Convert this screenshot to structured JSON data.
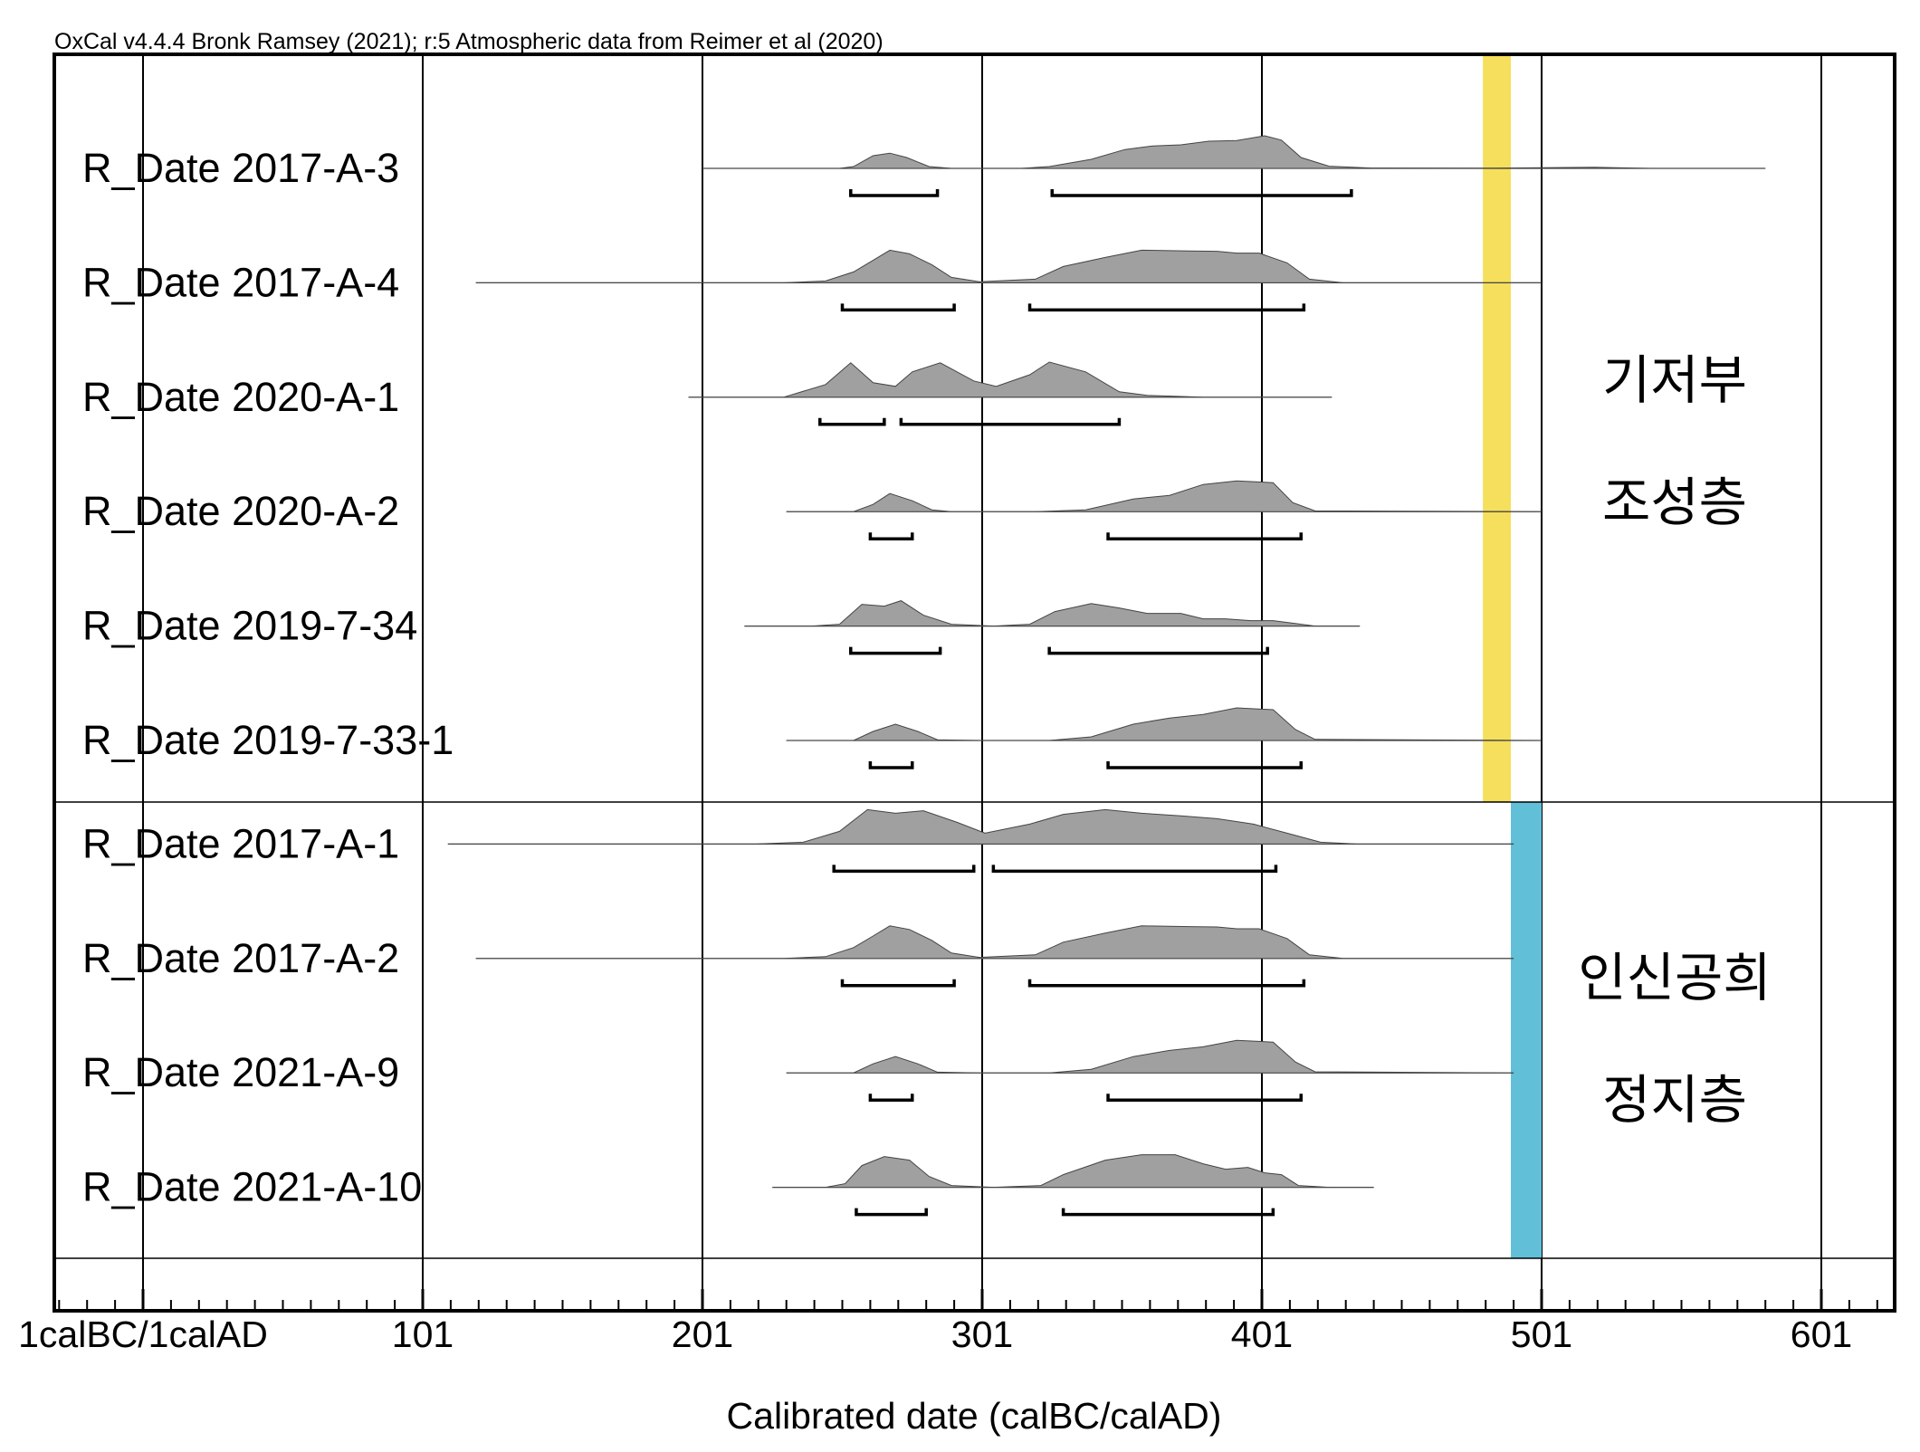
{
  "credit": "OxCal v4.4.4 Bronk Ramsey (2021); r:5 Atmospheric data from Reimer et al (2020)",
  "chart_data": {
    "type": "area",
    "xlabel": "Calibrated date (calBC/calAD)",
    "xlim": [
      -30,
      630
    ],
    "major_ticks": [
      1,
      101,
      201,
      301,
      401,
      501,
      601
    ],
    "tick_labels": [
      "1calBC/1calAD",
      "101",
      "201",
      "301",
      "401",
      "501",
      "601"
    ],
    "minor_tick_step": 10,
    "grid": true,
    "colors": {
      "distribution": "#a0a0a0",
      "range_bar": "#000000",
      "group1": "#f6df5c",
      "group2": "#61bfd8"
    },
    "series": [
      {
        "name": "R_Date 2017-A-3",
        "extent": [
          201,
          581
        ],
        "profile": [
          [
            201,
            0
          ],
          [
            250,
            0
          ],
          [
            255,
            0.05
          ],
          [
            262,
            0.35
          ],
          [
            268,
            0.42
          ],
          [
            274,
            0.3
          ],
          [
            282,
            0.05
          ],
          [
            290,
            0
          ],
          [
            300,
            0
          ],
          [
            315,
            0
          ],
          [
            325,
            0.05
          ],
          [
            340,
            0.25
          ],
          [
            352,
            0.52
          ],
          [
            362,
            0.62
          ],
          [
            372,
            0.65
          ],
          [
            382,
            0.75
          ],
          [
            392,
            0.77
          ],
          [
            402,
            0.9
          ],
          [
            408,
            0.78
          ],
          [
            415,
            0.3
          ],
          [
            425,
            0.06
          ],
          [
            440,
            0.01
          ],
          [
            480,
            0.005
          ],
          [
            520,
            0.03
          ],
          [
            540,
            0
          ],
          [
            581,
            0
          ]
        ],
        "ranges": [
          [
            254,
            285
          ],
          [
            326,
            433
          ]
        ]
      },
      {
        "name": "R_Date 2017-A-4",
        "extent": [
          120,
          501
        ],
        "profile": [
          [
            120,
            0
          ],
          [
            230,
            0
          ],
          [
            245,
            0.05
          ],
          [
            255,
            0.3
          ],
          [
            262,
            0.62
          ],
          [
            268,
            0.9
          ],
          [
            275,
            0.8
          ],
          [
            283,
            0.5
          ],
          [
            290,
            0.15
          ],
          [
            300,
            0.03
          ],
          [
            320,
            0.1
          ],
          [
            330,
            0.45
          ],
          [
            345,
            0.7
          ],
          [
            358,
            0.9
          ],
          [
            375,
            0.88
          ],
          [
            385,
            0.87
          ],
          [
            392,
            0.82
          ],
          [
            400,
            0.82
          ],
          [
            410,
            0.55
          ],
          [
            418,
            0.1
          ],
          [
            430,
            0
          ],
          [
            501,
            0
          ]
        ],
        "ranges": [
          [
            251,
            291
          ],
          [
            318,
            416
          ]
        ]
      },
      {
        "name": "R_Date 2020-A-1",
        "extent": [
          196,
          426
        ],
        "profile": [
          [
            196,
            0
          ],
          [
            230,
            0
          ],
          [
            245,
            0.35
          ],
          [
            254,
            0.95
          ],
          [
            262,
            0.4
          ],
          [
            270,
            0.3
          ],
          [
            276,
            0.7
          ],
          [
            286,
            0.95
          ],
          [
            298,
            0.45
          ],
          [
            306,
            0.3
          ],
          [
            318,
            0.62
          ],
          [
            325,
            0.97
          ],
          [
            338,
            0.7
          ],
          [
            350,
            0.15
          ],
          [
            360,
            0.05
          ],
          [
            380,
            0
          ],
          [
            426,
            0
          ]
        ],
        "ranges": [
          [
            243,
            266
          ],
          [
            272,
            350
          ]
        ]
      },
      {
        "name": "R_Date 2020-A-2",
        "extent": [
          231,
          501
        ],
        "profile": [
          [
            231,
            0
          ],
          [
            255,
            0
          ],
          [
            262,
            0.2
          ],
          [
            268,
            0.5
          ],
          [
            276,
            0.3
          ],
          [
            283,
            0.05
          ],
          [
            290,
            0
          ],
          [
            320,
            0
          ],
          [
            338,
            0.05
          ],
          [
            355,
            0.35
          ],
          [
            368,
            0.45
          ],
          [
            380,
            0.75
          ],
          [
            392,
            0.85
          ],
          [
            405,
            0.8
          ],
          [
            412,
            0.25
          ],
          [
            420,
            0.02
          ],
          [
            501,
            0
          ]
        ],
        "ranges": [
          [
            261,
            276
          ],
          [
            346,
            415
          ]
        ]
      },
      {
        "name": "R_Date 2019-7-34",
        "extent": [
          216,
          436
        ],
        "profile": [
          [
            216,
            0
          ],
          [
            240,
            0
          ],
          [
            250,
            0.05
          ],
          [
            258,
            0.6
          ],
          [
            266,
            0.55
          ],
          [
            272,
            0.7
          ],
          [
            280,
            0.3
          ],
          [
            290,
            0.05
          ],
          [
            305,
            0
          ],
          [
            318,
            0.05
          ],
          [
            327,
            0.4
          ],
          [
            340,
            0.62
          ],
          [
            350,
            0.5
          ],
          [
            360,
            0.35
          ],
          [
            372,
            0.35
          ],
          [
            380,
            0.2
          ],
          [
            388,
            0.2
          ],
          [
            397,
            0.15
          ],
          [
            405,
            0.15
          ],
          [
            412,
            0.08
          ],
          [
            420,
            0
          ],
          [
            436,
            0
          ]
        ],
        "ranges": [
          [
            254,
            286
          ],
          [
            325,
            403
          ]
        ]
      },
      {
        "name": "R_Date 2019-7-33-1",
        "extent": [
          231,
          501
        ],
        "profile": [
          [
            231,
            0
          ],
          [
            255,
            0
          ],
          [
            262,
            0.25
          ],
          [
            270,
            0.45
          ],
          [
            278,
            0.25
          ],
          [
            285,
            0.02
          ],
          [
            300,
            0
          ],
          [
            325,
            0
          ],
          [
            340,
            0.1
          ],
          [
            355,
            0.45
          ],
          [
            368,
            0.62
          ],
          [
            380,
            0.72
          ],
          [
            392,
            0.9
          ],
          [
            405,
            0.85
          ],
          [
            413,
            0.3
          ],
          [
            420,
            0.03
          ],
          [
            501,
            0
          ]
        ],
        "ranges": [
          [
            261,
            276
          ],
          [
            346,
            415
          ]
        ]
      },
      {
        "name": "R_Date 2017-A-1",
        "extent": [
          110,
          491
        ],
        "profile": [
          [
            110,
            0
          ],
          [
            220,
            0
          ],
          [
            237,
            0.05
          ],
          [
            250,
            0.35
          ],
          [
            260,
            0.95
          ],
          [
            270,
            0.85
          ],
          [
            280,
            0.92
          ],
          [
            292,
            0.6
          ],
          [
            302,
            0.3
          ],
          [
            318,
            0.55
          ],
          [
            330,
            0.82
          ],
          [
            345,
            0.95
          ],
          [
            358,
            0.85
          ],
          [
            372,
            0.78
          ],
          [
            385,
            0.7
          ],
          [
            398,
            0.55
          ],
          [
            410,
            0.3
          ],
          [
            422,
            0.05
          ],
          [
            435,
            0
          ],
          [
            491,
            0
          ]
        ],
        "ranges": [
          [
            248,
            298
          ],
          [
            305,
            406
          ]
        ]
      },
      {
        "name": "R_Date 2017-A-2",
        "extent": [
          120,
          491
        ],
        "profile": [
          [
            120,
            0
          ],
          [
            230,
            0
          ],
          [
            245,
            0.05
          ],
          [
            255,
            0.3
          ],
          [
            262,
            0.62
          ],
          [
            268,
            0.9
          ],
          [
            275,
            0.8
          ],
          [
            283,
            0.5
          ],
          [
            290,
            0.15
          ],
          [
            300,
            0.03
          ],
          [
            320,
            0.1
          ],
          [
            330,
            0.45
          ],
          [
            345,
            0.7
          ],
          [
            358,
            0.9
          ],
          [
            375,
            0.88
          ],
          [
            385,
            0.87
          ],
          [
            392,
            0.82
          ],
          [
            400,
            0.82
          ],
          [
            410,
            0.55
          ],
          [
            418,
            0.1
          ],
          [
            430,
            0
          ],
          [
            491,
            0
          ]
        ],
        "ranges": [
          [
            251,
            291
          ],
          [
            318,
            416
          ]
        ]
      },
      {
        "name": "R_Date 2021-A-9",
        "extent": [
          231,
          491
        ],
        "profile": [
          [
            231,
            0
          ],
          [
            255,
            0
          ],
          [
            262,
            0.25
          ],
          [
            270,
            0.45
          ],
          [
            278,
            0.25
          ],
          [
            285,
            0.02
          ],
          [
            300,
            0
          ],
          [
            325,
            0
          ],
          [
            340,
            0.1
          ],
          [
            355,
            0.45
          ],
          [
            368,
            0.62
          ],
          [
            380,
            0.72
          ],
          [
            392,
            0.9
          ],
          [
            405,
            0.85
          ],
          [
            413,
            0.3
          ],
          [
            420,
            0.03
          ],
          [
            491,
            0
          ]
        ],
        "ranges": [
          [
            261,
            276
          ],
          [
            346,
            415
          ]
        ]
      },
      {
        "name": "R_Date 2021-A-10",
        "extent": [
          226,
          441
        ],
        "profile": [
          [
            226,
            0
          ],
          [
            245,
            0
          ],
          [
            252,
            0.1
          ],
          [
            258,
            0.6
          ],
          [
            266,
            0.85
          ],
          [
            275,
            0.75
          ],
          [
            282,
            0.3
          ],
          [
            290,
            0.05
          ],
          [
            305,
            0
          ],
          [
            322,
            0.05
          ],
          [
            330,
            0.35
          ],
          [
            345,
            0.75
          ],
          [
            358,
            0.9
          ],
          [
            370,
            0.9
          ],
          [
            380,
            0.65
          ],
          [
            388,
            0.5
          ],
          [
            396,
            0.55
          ],
          [
            402,
            0.4
          ],
          [
            408,
            0.35
          ],
          [
            414,
            0.05
          ],
          [
            425,
            0
          ],
          [
            441,
            0
          ]
        ],
        "ranges": [
          [
            256,
            281
          ],
          [
            330,
            405
          ]
        ]
      }
    ],
    "groups": [
      {
        "label_lines": [
          "기저부",
          "조성층"
        ],
        "first_series": 0,
        "last_series": 5,
        "bar_range": [
          480,
          490
        ],
        "color": "#f6df5c"
      },
      {
        "label_lines": [
          "인신공희",
          "정지층"
        ],
        "first_series": 6,
        "last_series": 9,
        "bar_range": [
          490,
          501
        ],
        "color": "#61bfd8"
      }
    ]
  }
}
